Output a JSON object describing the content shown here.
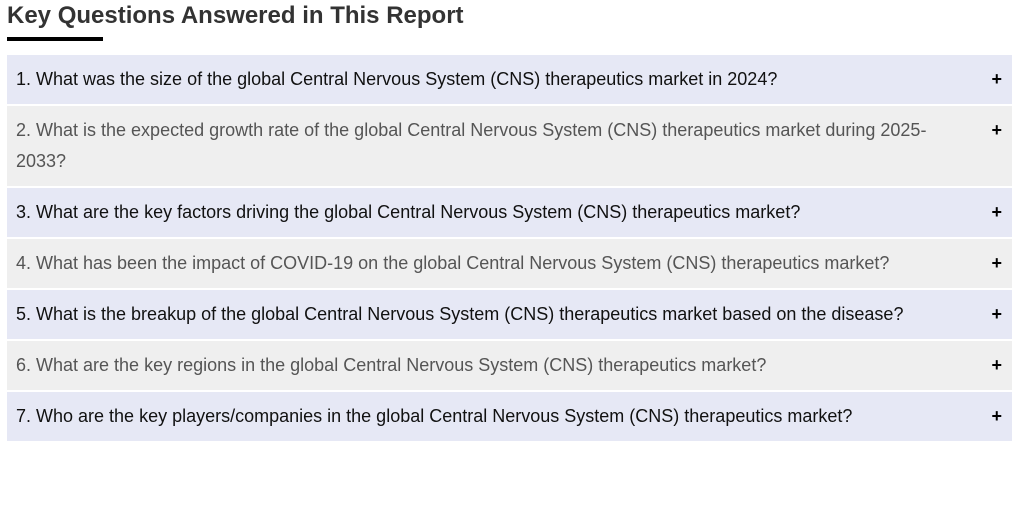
{
  "heading": "Key Questions Answered in This Report",
  "questions": [
    "1. What was the size of the global Central Nervous System (CNS) therapeutics market in 2024?",
    "2. What is the expected growth rate of the global Central Nervous System (CNS) therapeutics market during 2025-2033?",
    "3. What are the key factors driving the global Central Nervous System (CNS) therapeutics market?",
    "4. What has been the impact of COVID-19 on the global Central Nervous System (CNS) therapeutics market?",
    "5. What is the breakup of the global Central Nervous System (CNS) therapeutics market based on the disease?",
    "6. What are the key regions in the global Central Nervous System (CNS) therapeutics market?",
    "7. Who are the key players/companies in the global Central Nervous System (CNS) therapeutics market?"
  ],
  "expand_icon": "+",
  "colors": {
    "odd_row": "#e6e8f5",
    "even_row": "#efefef"
  }
}
